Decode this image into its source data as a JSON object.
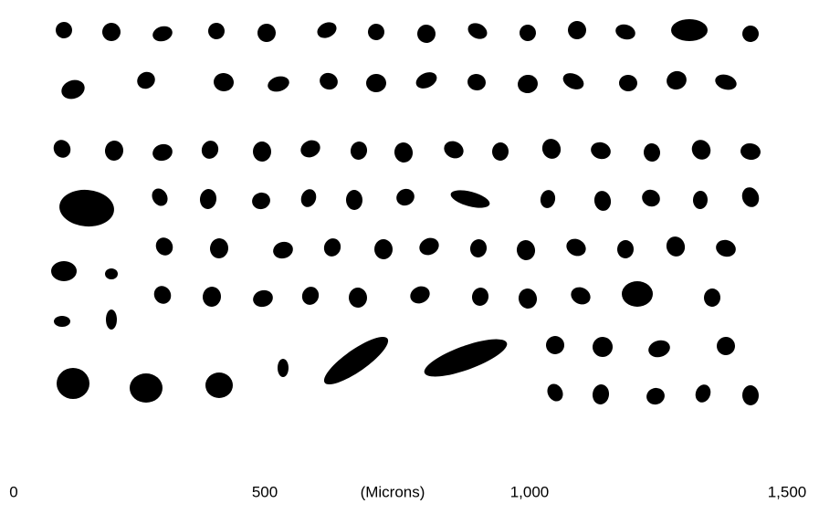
{
  "scale": {
    "unit_label": "(Microns)",
    "ticks": [
      "0",
      "500",
      "1,000",
      "1,500"
    ]
  }
}
